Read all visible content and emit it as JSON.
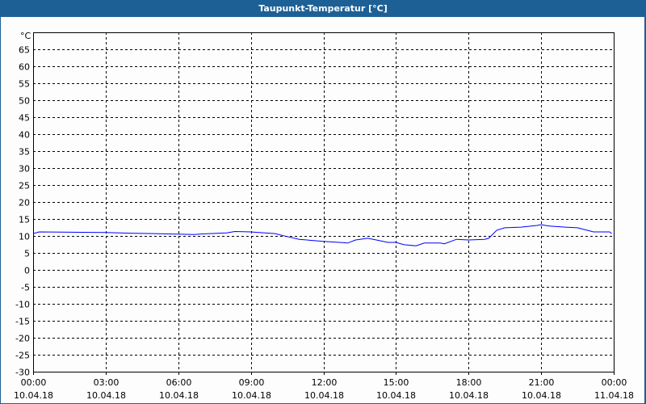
{
  "window": {
    "title": "Taupunkt-Temperatur [°C]"
  },
  "chart_data": {
    "type": "line",
    "title": "Taupunkt-Temperatur [°C]",
    "ylabel": "°C",
    "ylim": [
      -30,
      70
    ],
    "yticks": [
      65,
      60,
      55,
      50,
      45,
      40,
      35,
      30,
      25,
      20,
      15,
      10,
      5,
      0,
      -5,
      -10,
      -15,
      -20,
      -25,
      -30
    ],
    "xlim_hours": [
      0,
      24
    ],
    "xticks": [
      {
        "time": "00:00",
        "date": "10.04.18"
      },
      {
        "time": "03:00",
        "date": "10.04.18"
      },
      {
        "time": "06:00",
        "date": "10.04.18"
      },
      {
        "time": "09:00",
        "date": "10.04.18"
      },
      {
        "time": "12:00",
        "date": "10.04.18"
      },
      {
        "time": "15:00",
        "date": "10.04.18"
      },
      {
        "time": "18:00",
        "date": "10.04.18"
      },
      {
        "time": "21:00",
        "date": "10.04.18"
      },
      {
        "time": "00:00",
        "date": "11.04.18"
      }
    ],
    "grid": true,
    "line_color": "#0000ff",
    "series": [
      {
        "x": [
          "00:00",
          "00:15",
          "03:00",
          "04:00",
          "05:00",
          "06:40",
          "07:00",
          "08:00",
          "08:20",
          "09:00",
          "09:20",
          "10:00",
          "10:30",
          "11:00",
          "12:00",
          "12:40",
          "13:00",
          "13:20",
          "13:50",
          "14:20",
          "14:40",
          "15:00",
          "15:20",
          "15:50",
          "16:10",
          "16:50",
          "17:00",
          "17:30",
          "18:00",
          "18:40",
          "18:50",
          "19:10",
          "19:30",
          "20:10",
          "20:50",
          "21:00",
          "21:20",
          "22:00",
          "22:30",
          "23:10",
          "23:50",
          "23:55"
        ],
        "y": [
          10.7,
          11.2,
          11.0,
          10.8,
          10.7,
          10.4,
          10.6,
          10.9,
          11.3,
          11.2,
          11.0,
          10.7,
          9.8,
          9.0,
          8.4,
          8.1,
          7.9,
          8.8,
          9.3,
          8.6,
          8.1,
          8.1,
          7.4,
          7.1,
          7.9,
          7.9,
          7.7,
          9.0,
          8.8,
          9.0,
          9.3,
          11.7,
          12.4,
          12.6,
          13.1,
          13.3,
          12.9,
          12.6,
          12.4,
          11.2,
          11.2,
          10.7
        ]
      }
    ]
  }
}
